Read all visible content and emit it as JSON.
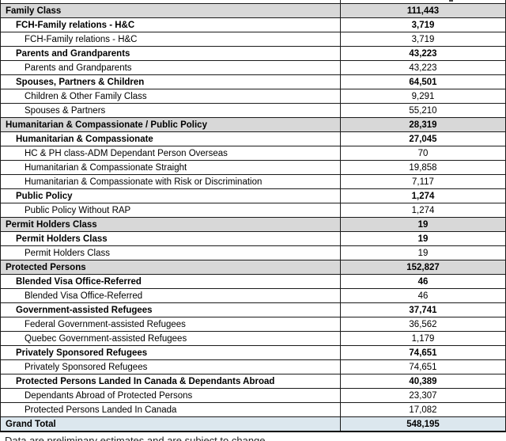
{
  "table": {
    "colors": {
      "section_bg": "#d8d8d8",
      "total_bg": "#dce7ee",
      "border": "#1a1a1a"
    },
    "rows": [
      {
        "label": "Family Class",
        "value": "111,443",
        "type": "section"
      },
      {
        "label": "FCH-Family relations - H&C",
        "value": "3,719",
        "type": "group"
      },
      {
        "label": "FCH-Family relations - H&C",
        "value": "3,719",
        "type": "item"
      },
      {
        "label": "Parents and Grandparents",
        "value": "43,223",
        "type": "group"
      },
      {
        "label": "Parents and Grandparents",
        "value": "43,223",
        "type": "item"
      },
      {
        "label": "Spouses, Partners & Children",
        "value": "64,501",
        "type": "group"
      },
      {
        "label": "Children & Other Family Class",
        "value": "9,291",
        "type": "item"
      },
      {
        "label": "Spouses & Partners",
        "value": "55,210",
        "type": "item"
      },
      {
        "label": "Humanitarian & Compassionate / Public Policy",
        "value": "28,319",
        "type": "section"
      },
      {
        "label": "Humanitarian & Compassionate",
        "value": "27,045",
        "type": "group"
      },
      {
        "label": "HC & PH class-ADM Dependant Person Overseas",
        "value": "70",
        "type": "item"
      },
      {
        "label": "Humanitarian & Compassionate Straight",
        "value": "19,858",
        "type": "item"
      },
      {
        "label": "Humanitarian & Compassionate with Risk or Discrimination",
        "value": "7,117",
        "type": "item"
      },
      {
        "label": "Public Policy",
        "value": "1,274",
        "type": "group"
      },
      {
        "label": "Public Policy Without RAP",
        "value": "1,274",
        "type": "item"
      },
      {
        "label": "Permit Holders Class",
        "value": "19",
        "type": "section"
      },
      {
        "label": "Permit Holders Class",
        "value": "19",
        "type": "group"
      },
      {
        "label": "Permit Holders Class",
        "value": "19",
        "type": "item"
      },
      {
        "label": "Protected Persons",
        "value": "152,827",
        "type": "section"
      },
      {
        "label": "Blended Visa Office-Referred",
        "value": "46",
        "type": "group"
      },
      {
        "label": "Blended Visa Office-Referred",
        "value": "46",
        "type": "item"
      },
      {
        "label": "Government-assisted Refugees",
        "value": "37,741",
        "type": "group"
      },
      {
        "label": "Federal Government-assisted Refugees",
        "value": "36,562",
        "type": "item"
      },
      {
        "label": "Quebec Government-assisted Refugees",
        "value": "1,179",
        "type": "item"
      },
      {
        "label": "Privately Sponsored Refugees",
        "value": "74,651",
        "type": "group"
      },
      {
        "label": "Privately Sponsored Refugees",
        "value": "74,651",
        "type": "item"
      },
      {
        "label": "Protected Persons Landed In Canada & Dependants Abroad",
        "value": "40,389",
        "type": "group"
      },
      {
        "label": "Dependants Abroad of Protected Persons",
        "value": "23,307",
        "type": "item"
      },
      {
        "label": "Protected Persons Landed In Canada",
        "value": "17,082",
        "type": "item"
      },
      {
        "label": "Grand Total",
        "value": "548,195",
        "type": "total"
      }
    ]
  },
  "caption": {
    "partial_text": "Data are preliminary estimates and are subject to change."
  }
}
